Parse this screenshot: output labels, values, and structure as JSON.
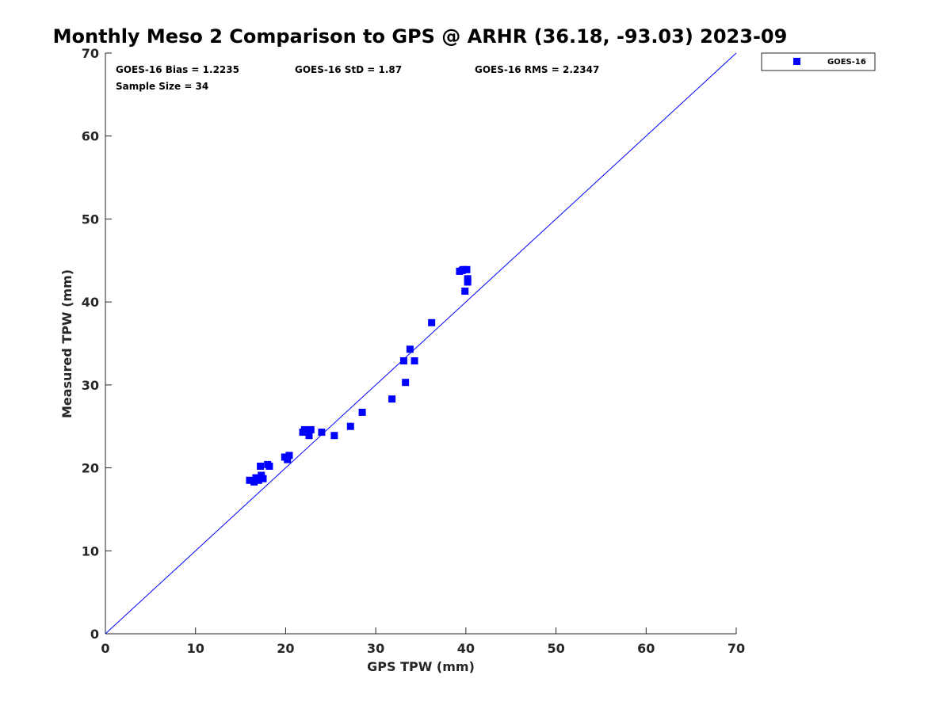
{
  "chart_data": {
    "type": "scatter",
    "title": "Monthly Meso 2 Comparison to GPS @ ARHR (36.18, -93.03) 2023-09",
    "xlabel": "GPS TPW (mm)",
    "ylabel": "Measured TPW (mm)",
    "xlim": [
      0,
      70
    ],
    "ylim": [
      0,
      70
    ],
    "xticks": [
      "0",
      "10",
      "20",
      "30",
      "40",
      "50",
      "60",
      "70"
    ],
    "yticks": [
      "0",
      "10",
      "20",
      "30",
      "40",
      "50",
      "60",
      "70"
    ],
    "grid": false,
    "legend_position": "top-right outside",
    "reference_line": {
      "from": [
        0,
        0
      ],
      "to": [
        70,
        70
      ],
      "color": "#0000ff"
    },
    "stats": {
      "bias": "GOES-16 Bias = 1.2235",
      "std": "GOES-16 StD = 1.87",
      "rms": "GOES-16 RMS = 2.2347",
      "sample": "Sample Size = 34"
    },
    "series": [
      {
        "name": "GOES-16",
        "color": "#0000ff",
        "marker": "square",
        "points": [
          [
            16.0,
            18.5
          ],
          [
            16.5,
            18.3
          ],
          [
            16.7,
            18.8
          ],
          [
            17.0,
            18.5
          ],
          [
            17.3,
            19.1
          ],
          [
            17.5,
            18.7
          ],
          [
            17.2,
            20.2
          ],
          [
            18.0,
            20.4
          ],
          [
            18.2,
            20.2
          ],
          [
            19.9,
            21.3
          ],
          [
            20.2,
            21.0
          ],
          [
            20.4,
            21.5
          ],
          [
            21.9,
            24.3
          ],
          [
            22.1,
            24.6
          ],
          [
            22.5,
            24.4
          ],
          [
            22.6,
            23.9
          ],
          [
            22.8,
            24.6
          ],
          [
            24.0,
            24.3
          ],
          [
            25.4,
            23.9
          ],
          [
            27.2,
            25.0
          ],
          [
            28.5,
            26.7
          ],
          [
            31.8,
            28.3
          ],
          [
            33.1,
            32.9
          ],
          [
            33.3,
            30.3
          ],
          [
            33.8,
            34.3
          ],
          [
            34.3,
            32.9
          ],
          [
            36.2,
            37.5
          ],
          [
            39.3,
            43.7
          ],
          [
            39.7,
            43.9
          ],
          [
            40.1,
            43.9
          ],
          [
            39.9,
            41.3
          ],
          [
            40.2,
            42.8
          ],
          [
            40.2,
            42.4
          ],
          [
            39.6,
            43.8
          ]
        ]
      }
    ]
  }
}
